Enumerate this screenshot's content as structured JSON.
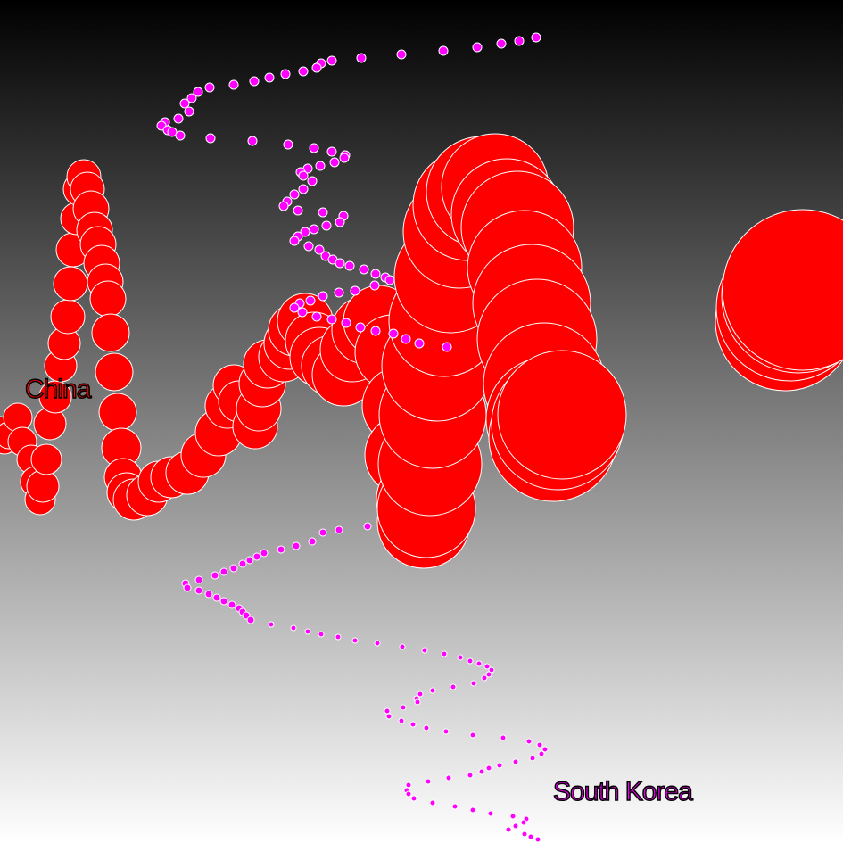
{
  "chart_data": {
    "type": "scatter",
    "title": "",
    "xlabel": "",
    "ylabel": "",
    "grid": false,
    "legend": "none",
    "background": {
      "top": "#000000",
      "bottom": "#ffffff"
    },
    "series": [
      {
        "name": "China",
        "color": "#ff0000",
        "stroke": "#ffffff",
        "points": [
          [
            -30,
            465,
            8
          ],
          [
            -30,
            480,
            9
          ],
          [
            -30,
            495,
            10
          ],
          [
            -20,
            480,
            12
          ],
          [
            -15,
            500,
            12
          ],
          [
            0,
            480,
            13
          ],
          [
            5,
            495,
            14
          ],
          [
            10,
            488,
            15
          ],
          [
            20,
            468,
            16
          ],
          [
            25,
            495,
            16
          ],
          [
            35,
            515,
            16
          ],
          [
            40,
            540,
            17
          ],
          [
            45,
            560,
            17
          ],
          [
            48,
            545,
            18
          ],
          [
            52,
            515,
            17
          ],
          [
            56,
            475,
            18
          ],
          [
            62,
            445,
            18
          ],
          [
            68,
            410,
            18
          ],
          [
            72,
            385,
            18
          ],
          [
            76,
            355,
            19
          ],
          [
            79,
            318,
            19
          ],
          [
            82,
            280,
            19
          ],
          [
            86,
            245,
            18
          ],
          [
            90,
            212,
            19
          ],
          [
            94,
            198,
            19
          ],
          [
            98,
            212,
            19
          ],
          [
            102,
            234,
            20
          ],
          [
            106,
            258,
            20
          ],
          [
            110,
            274,
            20
          ],
          [
            114,
            295,
            20
          ],
          [
            118,
            316,
            20
          ],
          [
            121,
            335,
            20
          ],
          [
            124,
            373,
            21
          ],
          [
            128,
            417,
            21
          ],
          [
            132,
            462,
            21
          ],
          [
            136,
            502,
            22
          ],
          [
            138,
            535,
            21
          ],
          [
            142,
            552,
            22
          ],
          [
            150,
            560,
            23
          ],
          [
            165,
            555,
            23
          ],
          [
            178,
            540,
            23
          ],
          [
            192,
            535,
            23
          ],
          [
            210,
            530,
            24
          ],
          [
            228,
            510,
            25
          ],
          [
            245,
            485,
            26
          ],
          [
            255,
            455,
            25
          ],
          [
            262,
            432,
            23
          ],
          [
            268,
            450,
            23
          ],
          [
            286,
            478,
            25
          ],
          [
            290,
            458,
            25
          ],
          [
            294,
            430,
            26
          ],
          [
            300,
            408,
            27
          ],
          [
            318,
            400,
            28
          ],
          [
            325,
            385,
            29
          ],
          [
            330,
            370,
            29
          ],
          [
            342,
            360,
            31
          ],
          [
            352,
            382,
            32
          ],
          [
            358,
            400,
            33
          ],
          [
            372,
            410,
            34
          ],
          [
            385,
            420,
            35
          ],
          [
            395,
            392,
            36
          ],
          [
            410,
            370,
            38
          ],
          [
            425,
            360,
            40
          ],
          [
            440,
            395,
            42
          ],
          [
            450,
            455,
            44
          ],
          [
            455,
            510,
            46
          ],
          [
            470,
            560,
            48
          ],
          [
            475,
            585,
            52
          ],
          [
            478,
            570,
            55
          ],
          [
            482,
            520,
            58
          ],
          [
            485,
            465,
            60
          ],
          [
            490,
            410,
            62
          ],
          [
            498,
            360,
            62
          ],
          [
            505,
            310,
            63
          ],
          [
            515,
            260,
            63
          ],
          [
            525,
            230,
            62
          ],
          [
            540,
            215,
            62
          ],
          [
            555,
            210,
            60
          ],
          [
            568,
            240,
            62
          ],
          [
            580,
            255,
            63
          ],
          [
            588,
            300,
            64
          ],
          [
            596,
            340,
            66
          ],
          [
            602,
            380,
            67
          ],
          [
            610,
            430,
            68
          ],
          [
            615,
            470,
            70
          ],
          [
            620,
            490,
            72
          ],
          [
            625,
            475,
            74
          ],
          [
            630,
            465,
            72
          ],
          [
            880,
            360,
            78
          ],
          [
            885,
            345,
            82
          ],
          [
            895,
            332,
            86
          ],
          [
            900,
            325,
            90
          ]
        ]
      },
      {
        "name": "South Korea",
        "color": "#ff00ff",
        "stroke": "#ffffff",
        "points": [
          [
            601,
            42
          ],
          [
            582,
            46
          ],
          [
            562,
            49
          ],
          [
            535,
            53
          ],
          [
            497,
            57
          ],
          [
            450,
            61
          ],
          [
            405,
            65
          ],
          [
            372,
            68
          ],
          [
            360,
            71
          ],
          [
            355,
            76
          ],
          [
            340,
            80
          ],
          [
            320,
            83
          ],
          [
            302,
            87
          ],
          [
            285,
            91
          ],
          [
            262,
            95
          ],
          [
            235,
            98
          ],
          [
            222,
            103
          ],
          [
            215,
            110
          ],
          [
            207,
            116
          ],
          [
            212,
            125
          ],
          [
            200,
            133
          ],
          [
            185,
            137
          ],
          [
            181,
            141
          ],
          [
            188,
            146
          ],
          [
            193,
            148
          ],
          [
            202,
            152
          ],
          [
            236,
            155
          ],
          [
            283,
            158
          ],
          [
            323,
            162
          ],
          [
            352,
            166
          ],
          [
            372,
            170
          ],
          [
            387,
            174
          ],
          [
            386,
            177
          ],
          [
            375,
            182
          ],
          [
            359,
            186
          ],
          [
            345,
            189
          ],
          [
            337,
            193
          ],
          [
            340,
            197
          ],
          [
            350,
            203
          ],
          [
            340,
            212
          ],
          [
            330,
            218
          ],
          [
            322,
            226
          ],
          [
            318,
            231
          ],
          [
            334,
            236
          ],
          [
            362,
            238
          ],
          [
            385,
            242
          ],
          [
            381,
            249
          ],
          [
            366,
            253
          ],
          [
            352,
            257
          ],
          [
            342,
            260
          ],
          [
            334,
            265
          ],
          [
            330,
            270
          ],
          [
            346,
            276
          ],
          [
            358,
            280
          ],
          [
            365,
            287
          ],
          [
            373,
            291
          ],
          [
            381,
            295
          ],
          [
            392,
            298
          ],
          [
            408,
            302
          ],
          [
            421,
            307
          ],
          [
            432,
            311
          ],
          [
            437,
            314
          ],
          [
            420,
            320
          ],
          [
            398,
            326
          ],
          [
            380,
            328
          ],
          [
            362,
            332
          ],
          [
            348,
            337
          ],
          [
            336,
            340
          ],
          [
            330,
            345
          ],
          [
            339,
            350
          ],
          [
            355,
            355
          ],
          [
            372,
            358
          ],
          [
            388,
            362
          ],
          [
            404,
            367
          ],
          [
            421,
            371
          ],
          [
            441,
            374
          ],
          [
            455,
            380
          ],
          [
            470,
            385
          ],
          [
            501,
            389
          ],
          [
            412,
            590
          ],
          [
            380,
            594
          ],
          [
            362,
            597
          ],
          [
            350,
            607
          ],
          [
            332,
            612
          ],
          [
            315,
            616
          ],
          [
            296,
            620
          ],
          [
            288,
            624
          ],
          [
            280,
            628
          ],
          [
            272,
            632
          ],
          [
            262,
            637
          ],
          [
            251,
            641
          ],
          [
            241,
            645
          ],
          [
            223,
            650
          ],
          [
            208,
            654
          ],
          [
            210,
            659
          ],
          [
            223,
            662
          ],
          [
            234,
            666
          ],
          [
            243,
            670
          ],
          [
            251,
            674
          ],
          [
            260,
            678
          ],
          [
            268,
            682
          ],
          [
            272,
            686
          ],
          [
            276,
            690
          ],
          [
            281,
            695
          ],
          [
            304,
            700
          ],
          [
            329,
            704
          ],
          [
            345,
            708
          ],
          [
            360,
            711
          ],
          [
            379,
            714
          ],
          [
            398,
            718
          ],
          [
            423,
            721
          ],
          [
            451,
            725
          ],
          [
            476,
            729
          ],
          [
            498,
            733
          ],
          [
            516,
            737
          ],
          [
            527,
            741
          ],
          [
            537,
            744
          ],
          [
            546,
            747
          ],
          [
            551,
            751
          ],
          [
            548,
            756
          ],
          [
            543,
            760
          ],
          [
            531,
            766
          ],
          [
            508,
            770
          ],
          [
            485,
            774
          ],
          [
            471,
            778
          ],
          [
            467,
            783
          ],
          [
            468,
            787
          ],
          [
            452,
            793
          ],
          [
            434,
            797
          ],
          [
            436,
            803
          ],
          [
            450,
            808
          ],
          [
            463,
            812
          ],
          [
            478,
            816
          ],
          [
            500,
            820
          ],
          [
            530,
            824
          ],
          [
            564,
            827
          ],
          [
            593,
            831
          ],
          [
            605,
            835
          ],
          [
            611,
            840
          ],
          [
            607,
            845
          ],
          [
            597,
            850
          ],
          [
            578,
            854
          ],
          [
            560,
            858
          ],
          [
            548,
            861
          ],
          [
            540,
            865
          ],
          [
            527,
            869
          ],
          [
            503,
            872
          ],
          [
            480,
            876
          ],
          [
            458,
            880
          ],
          [
            456,
            886
          ],
          [
            458,
            890
          ],
          [
            464,
            895
          ],
          [
            485,
            900
          ],
          [
            510,
            904
          ],
          [
            530,
            908
          ],
          [
            550,
            912
          ],
          [
            575,
            915
          ],
          [
            590,
            918
          ],
          [
            587,
            922
          ],
          [
            578,
            926
          ],
          [
            570,
            930
          ],
          [
            588,
            935
          ],
          [
            595,
            938
          ],
          [
            603,
            941
          ]
        ]
      }
    ],
    "labels": [
      "China",
      "South Korea"
    ]
  }
}
